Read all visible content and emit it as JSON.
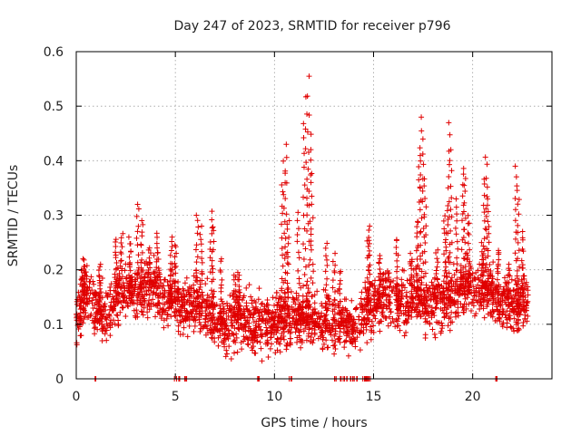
{
  "chart_data": {
    "type": "scatter",
    "title": "Day 247 of 2023, SRMTID for receiver p796",
    "xlabel": "GPS time / hours",
    "ylabel": "SRMTID / TECUs",
    "xlim": [
      0,
      24
    ],
    "ylim": [
      0,
      0.6
    ],
    "xticks": [
      0,
      5,
      10,
      15,
      20
    ],
    "xtick_labels": [
      "0",
      "5",
      "10",
      "15",
      "20"
    ],
    "yticks": [
      0,
      0.1,
      0.2,
      0.3,
      0.4,
      0.5,
      0.6
    ],
    "ytick_labels": [
      "0",
      "0.1",
      "0.2",
      "0.3",
      "0.4",
      "0.5",
      "0.6"
    ],
    "grid": true,
    "marker": "plus",
    "colors": {
      "marker": "#e00000",
      "axis": "#000000",
      "grid": "#a0a0a0"
    },
    "series": [
      {
        "name": "SRMTID",
        "baseline": [
          [
            0.0,
            0.11
          ],
          [
            0.5,
            0.16
          ],
          [
            1.0,
            0.13
          ],
          [
            1.5,
            0.11
          ],
          [
            2.0,
            0.15
          ],
          [
            2.5,
            0.17
          ],
          [
            3.0,
            0.15
          ],
          [
            3.5,
            0.17
          ],
          [
            4.0,
            0.16
          ],
          [
            4.5,
            0.15
          ],
          [
            5.0,
            0.14
          ],
          [
            5.5,
            0.13
          ],
          [
            6.0,
            0.14
          ],
          [
            6.5,
            0.13
          ],
          [
            7.0,
            0.11
          ],
          [
            7.5,
            0.1
          ],
          [
            8.0,
            0.11
          ],
          [
            8.5,
            0.11
          ],
          [
            9.0,
            0.1
          ],
          [
            9.5,
            0.1
          ],
          [
            10.0,
            0.1
          ],
          [
            10.5,
            0.11
          ],
          [
            11.0,
            0.11
          ],
          [
            11.5,
            0.11
          ],
          [
            12.0,
            0.11
          ],
          [
            12.5,
            0.1
          ],
          [
            13.0,
            0.1
          ],
          [
            13.5,
            0.1
          ],
          [
            14.0,
            0.1
          ],
          [
            14.5,
            0.12
          ],
          [
            15.0,
            0.14
          ],
          [
            15.5,
            0.15
          ],
          [
            16.0,
            0.14
          ],
          [
            16.5,
            0.14
          ],
          [
            17.0,
            0.15
          ],
          [
            17.5,
            0.14
          ],
          [
            18.0,
            0.14
          ],
          [
            18.5,
            0.14
          ],
          [
            19.0,
            0.15
          ],
          [
            19.5,
            0.17
          ],
          [
            20.0,
            0.17
          ],
          [
            20.5,
            0.16
          ],
          [
            21.0,
            0.16
          ],
          [
            21.5,
            0.14
          ],
          [
            22.0,
            0.13
          ],
          [
            22.5,
            0.14
          ],
          [
            22.8,
            0.14
          ]
        ],
        "spikes": [
          [
            0.3,
            0.2
          ],
          [
            0.4,
            0.22
          ],
          [
            1.2,
            0.21
          ],
          [
            2.0,
            0.26
          ],
          [
            2.3,
            0.27
          ],
          [
            2.7,
            0.26
          ],
          [
            3.1,
            0.32
          ],
          [
            3.3,
            0.29
          ],
          [
            3.7,
            0.24
          ],
          [
            4.1,
            0.27
          ],
          [
            4.8,
            0.26
          ],
          [
            5.0,
            0.25
          ],
          [
            6.1,
            0.3
          ],
          [
            6.3,
            0.28
          ],
          [
            6.8,
            0.31
          ],
          [
            6.9,
            0.28
          ],
          [
            7.3,
            0.22
          ],
          [
            8.0,
            0.19
          ],
          [
            8.2,
            0.2
          ],
          [
            10.4,
            0.36
          ],
          [
            10.5,
            0.4
          ],
          [
            10.6,
            0.43
          ],
          [
            10.7,
            0.29
          ],
          [
            11.2,
            0.31
          ],
          [
            11.5,
            0.47
          ],
          [
            11.6,
            0.52
          ],
          [
            11.7,
            0.555
          ],
          [
            11.8,
            0.45
          ],
          [
            11.9,
            0.38
          ],
          [
            12.6,
            0.25
          ],
          [
            13.0,
            0.23
          ],
          [
            13.3,
            0.2
          ],
          [
            14.7,
            0.26
          ],
          [
            14.8,
            0.28
          ],
          [
            15.3,
            0.23
          ],
          [
            16.2,
            0.26
          ],
          [
            16.9,
            0.23
          ],
          [
            17.2,
            0.29
          ],
          [
            17.3,
            0.41
          ],
          [
            17.4,
            0.48
          ],
          [
            17.5,
            0.44
          ],
          [
            17.6,
            0.37
          ],
          [
            18.2,
            0.24
          ],
          [
            18.6,
            0.3
          ],
          [
            18.7,
            0.32
          ],
          [
            18.8,
            0.47
          ],
          [
            18.9,
            0.42
          ],
          [
            19.2,
            0.33
          ],
          [
            19.5,
            0.39
          ],
          [
            19.6,
            0.37
          ],
          [
            19.8,
            0.3
          ],
          [
            20.5,
            0.25
          ],
          [
            20.6,
            0.37
          ],
          [
            20.7,
            0.41
          ],
          [
            20.8,
            0.33
          ],
          [
            21.3,
            0.24
          ],
          [
            21.8,
            0.21
          ],
          [
            22.2,
            0.39
          ],
          [
            22.3,
            0.35
          ],
          [
            22.5,
            0.27
          ]
        ],
        "zeros": [
          1.0,
          5.0,
          5.2,
          5.5,
          9.2,
          10.8,
          13.1,
          13.4,
          13.6,
          13.9,
          14.0,
          14.1,
          14.5,
          14.6,
          14.7,
          14.8,
          21.2
        ],
        "approx_point_count": 2600
      }
    ]
  }
}
